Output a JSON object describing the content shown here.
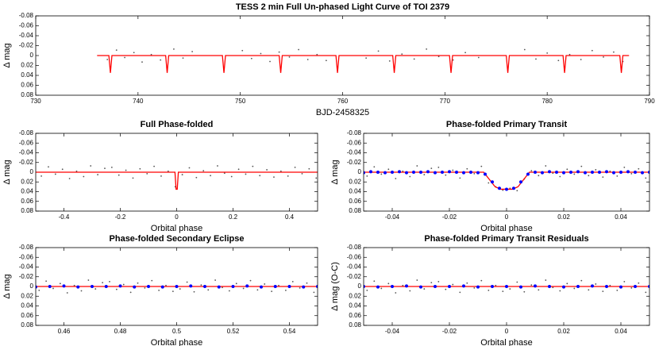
{
  "chart_data": [
    {
      "type": "scatter",
      "title": "TESS 2 min Full Un-phased Light Curve of TOI 2379",
      "xlabel": "BJD-2458325",
      "ylabel": "Δ mag",
      "xlim": [
        730,
        790
      ],
      "xticks": [
        730,
        740,
        750,
        760,
        770,
        780,
        790
      ],
      "ylim": [
        -0.08,
        0.08
      ],
      "y_inverted": true,
      "yticks": [
        -0.08,
        -0.06,
        -0.04,
        -0.02,
        0,
        0.02,
        0.04,
        0.06,
        0.08
      ],
      "series": [
        {
          "type": "scatter",
          "color": "#555555",
          "x": [
            737,
            737.9,
            738.7,
            739.6,
            740.4,
            741.3,
            742.2,
            743.5,
            744.4,
            745.3,
            750.2,
            751.1,
            752,
            752.9,
            753.8,
            754.8,
            755.7,
            756.6,
            757.5,
            758.4,
            762.3,
            763.5,
            764.6,
            765.8,
            767,
            768.2,
            769.4,
            770.8,
            772,
            773.3,
            777.8,
            778.9,
            780,
            781.1,
            782.2,
            783.3,
            784.4,
            785.5,
            786.5,
            787.4
          ],
          "values": [
            0.008,
            -0.011,
            0.004,
            -0.006,
            0.013,
            -0.002,
            0.009,
            -0.013,
            0.005,
            -0.008,
            -0.01,
            0.006,
            -0.004,
            0.012,
            -0.007,
            0.003,
            -0.012,
            0.008,
            -0.002,
            0.01,
            0.005,
            -0.009,
            0.011,
            -0.003,
            0.007,
            -0.013,
            0.002,
            0.009,
            -0.006,
            0.004,
            -0.012,
            0.007,
            -0.005,
            0.01,
            -0.002,
            0.008,
            -0.01,
            0.003,
            -0.007,
            0.012
          ]
        },
        {
          "type": "line",
          "color": "#ff0000",
          "x": [
            736,
            737.15,
            737.3,
            737.45,
            742.7,
            742.85,
            743,
            748.25,
            748.4,
            748.55,
            753.8,
            753.95,
            754.1,
            759.35,
            759.5,
            759.65,
            764.9,
            765.05,
            765.2,
            770.45,
            770.6,
            770.75,
            776,
            776.15,
            776.3,
            781.55,
            781.7,
            781.85,
            787.1,
            787.25,
            787.4,
            788
          ],
          "values": [
            0,
            0,
            0.035,
            0,
            0,
            0.035,
            0,
            0,
            0.035,
            0,
            0,
            0.035,
            0,
            0,
            0.035,
            0,
            0,
            0.035,
            0,
            0,
            0.035,
            0,
            0,
            0.035,
            0,
            0,
            0.035,
            0,
            0,
            0.035,
            0,
            0
          ]
        }
      ]
    },
    {
      "type": "scatter",
      "title": "Full Phase-folded",
      "xlabel": "Orbital phase",
      "ylabel": "Δ mag",
      "xlim": [
        -0.5,
        0.5
      ],
      "xticks": [
        -0.4,
        -0.2,
        0,
        0.2,
        0.4
      ],
      "ylim": [
        -0.08,
        0.08
      ],
      "y_inverted": true,
      "yticks": [
        -0.08,
        -0.06,
        -0.04,
        -0.02,
        0,
        0.02,
        0.04,
        0.06,
        0.08
      ],
      "series": [
        {
          "type": "scatter",
          "color": "#555555",
          "x": [
            -0.48,
            -0.455,
            -0.43,
            -0.405,
            -0.38,
            -0.355,
            -0.33,
            -0.305,
            -0.28,
            -0.255,
            -0.23,
            -0.205,
            -0.18,
            -0.155,
            -0.13,
            -0.105,
            -0.08,
            -0.055,
            -0.03,
            -0.005,
            0.02,
            0.045,
            0.07,
            0.095,
            0.12,
            0.145,
            0.17,
            0.195,
            0.22,
            0.245,
            0.27,
            0.295,
            0.32,
            0.345,
            0.37,
            0.395,
            0.42,
            0.445,
            0.47,
            0.495
          ],
          "values": [
            0.008,
            -0.011,
            0.004,
            -0.006,
            0.013,
            -0.002,
            0.009,
            -0.013,
            0.005,
            -0.008,
            -0.01,
            0.006,
            -0.004,
            0.012,
            -0.007,
            0.003,
            -0.012,
            0.008,
            -0.002,
            0.03,
            0.005,
            -0.009,
            0.011,
            -0.003,
            0.007,
            -0.013,
            0.002,
            0.009,
            -0.006,
            0.004,
            -0.012,
            0.007,
            -0.005,
            0.01,
            -0.002,
            0.008,
            -0.01,
            0.003,
            -0.007,
            0.012
          ]
        },
        {
          "type": "line",
          "color": "#ff0000",
          "x": [
            -0.5,
            -0.006,
            -0.002,
            0.002,
            0.006,
            0.5
          ],
          "values": [
            0,
            0,
            0.035,
            0.035,
            0,
            0
          ]
        }
      ]
    },
    {
      "type": "scatter",
      "title": "Phase-folded Primary Transit",
      "xlabel": "Orbital phase",
      "ylabel": "Δ mag",
      "xlim": [
        -0.05,
        0.05
      ],
      "xticks": [
        -0.04,
        -0.02,
        0,
        0.02,
        0.04
      ],
      "ylim": [
        -0.08,
        0.08
      ],
      "y_inverted": true,
      "yticks": [
        -0.08,
        -0.06,
        -0.04,
        -0.02,
        0,
        0.02,
        0.04,
        0.06,
        0.08
      ],
      "series": [
        {
          "type": "scatter",
          "color": "#555555",
          "x": [
            -0.0488,
            -0.0463,
            -0.0438,
            -0.0413,
            -0.0388,
            -0.0363,
            -0.0338,
            -0.0313,
            -0.0288,
            -0.0263,
            -0.0238,
            -0.0213,
            -0.0188,
            -0.0163,
            -0.0138,
            -0.0113,
            -0.0088,
            -0.0063,
            -0.0038,
            -0.0013,
            0.0012,
            0.0037,
            0.0062,
            0.0087,
            0.0112,
            0.0137,
            0.0162,
            0.0187,
            0.0212,
            0.0237,
            0.0262,
            0.0287,
            0.0312,
            0.0337,
            0.0362,
            0.0387,
            0.0412,
            0.0437,
            0.0462,
            0.0487
          ],
          "values": [
            0.008,
            -0.011,
            0.004,
            -0.006,
            0.013,
            -0.002,
            0.009,
            -0.013,
            0.005,
            -0.008,
            -0.01,
            0.006,
            -0.004,
            0.012,
            -0.007,
            0.003,
            -0.012,
            0.022,
            0.03,
            0.037,
            0.033,
            0.038,
            0.014,
            -0.003,
            0.007,
            -0.013,
            0.002,
            0.009,
            -0.006,
            0.004,
            -0.012,
            0.007,
            -0.005,
            0.01,
            -0.002,
            0.008,
            -0.01,
            0.003,
            -0.007,
            0.012
          ]
        },
        {
          "type": "line",
          "color": "#ff0000",
          "x": [
            -0.05,
            -0.008,
            -0.004,
            -0.002,
            0.002,
            0.004,
            0.008,
            0.05
          ],
          "values": [
            0,
            0,
            0.03,
            0.035,
            0.035,
            0.03,
            0,
            0
          ]
        },
        {
          "type": "scatter",
          "color": "#0000ff",
          "x": [
            -0.05,
            -0.0475,
            -0.045,
            -0.0425,
            -0.04,
            -0.0375,
            -0.035,
            -0.0325,
            -0.03,
            -0.0275,
            -0.025,
            -0.0225,
            -0.02,
            -0.0175,
            -0.015,
            -0.0125,
            -0.01,
            -0.0075,
            -0.005,
            -0.0025,
            0,
            0.0025,
            0.005,
            0.0075,
            0.01,
            0.0125,
            0.015,
            0.0175,
            0.02,
            0.0225,
            0.025,
            0.0275,
            0.03,
            0.0325,
            0.035,
            0.0375,
            0.04,
            0.0425,
            0.045,
            0.0475,
            0.05
          ],
          "values": [
            0.001,
            -0.001,
            0,
            0.001,
            0,
            -0.001,
            0.001,
            0,
            0,
            -0.001,
            0.001,
            0,
            -0.001,
            0,
            0.001,
            0,
            0.001,
            0.004,
            0.02,
            0.033,
            0.035,
            0.033,
            0.02,
            0.004,
            0,
            0.001,
            -0.001,
            0,
            0.001,
            0,
            -0.001,
            0.001,
            0,
            0,
            -0.001,
            0.001,
            0,
            -0.001,
            0,
            0.001,
            0
          ]
        }
      ]
    },
    {
      "type": "scatter",
      "title": "Phase-folded Secondary Eclipse",
      "xlabel": "Orbital phase",
      "ylabel": "Δ mag",
      "xlim": [
        0.45,
        0.55
      ],
      "xticks": [
        0.46,
        0.48,
        0.5,
        0.52,
        0.54
      ],
      "ylim": [
        -0.08,
        0.08
      ],
      "y_inverted": true,
      "yticks": [
        -0.08,
        -0.06,
        -0.04,
        -0.02,
        0,
        0.02,
        0.04,
        0.06,
        0.08
      ],
      "series": [
        {
          "type": "scatter",
          "color": "#555555",
          "x": [
            0.4512,
            0.4537,
            0.4562,
            0.4587,
            0.4612,
            0.4637,
            0.4662,
            0.4687,
            0.4712,
            0.4737,
            0.4762,
            0.4787,
            0.4812,
            0.4837,
            0.4862,
            0.4887,
            0.4912,
            0.4937,
            0.4962,
            0.4987,
            0.5012,
            0.5037,
            0.5062,
            0.5087,
            0.5112,
            0.5137,
            0.5162,
            0.5187,
            0.5212,
            0.5237,
            0.5262,
            0.5287,
            0.5312,
            0.5337,
            0.5362,
            0.5387,
            0.5412,
            0.5437,
            0.5462,
            0.5487
          ],
          "values": [
            0.008,
            -0.011,
            0.004,
            -0.006,
            0.013,
            -0.002,
            0.009,
            -0.013,
            0.005,
            -0.008,
            -0.01,
            0.006,
            -0.004,
            0.012,
            -0.007,
            0.003,
            -0.012,
            0.008,
            -0.002,
            0.01,
            0.005,
            -0.009,
            0.011,
            -0.003,
            0.007,
            -0.013,
            0.002,
            0.009,
            -0.006,
            0.004,
            -0.012,
            0.007,
            -0.005,
            0.01,
            -0.002,
            0.008,
            -0.01,
            0.003,
            -0.007,
            0.012
          ]
        },
        {
          "type": "line",
          "color": "#ff0000",
          "x": [
            0.45,
            0.55
          ],
          "values": [
            0,
            0
          ]
        },
        {
          "type": "scatter",
          "color": "#0000ff",
          "x": [
            0.45,
            0.455,
            0.46,
            0.465,
            0.47,
            0.475,
            0.48,
            0.485,
            0.49,
            0.495,
            0.5,
            0.505,
            0.51,
            0.515,
            0.52,
            0.525,
            0.53,
            0.535,
            0.54,
            0.545,
            0.55
          ],
          "values": [
            0.001,
            0,
            -0.001,
            0.001,
            0,
            0,
            -0.001,
            0.001,
            0,
            0.001,
            0,
            -0.001,
            0,
            0.001,
            0,
            -0.001,
            0.001,
            0,
            0,
            0.001,
            0
          ]
        }
      ]
    },
    {
      "type": "scatter",
      "title": "Phase-folded Primary Transit Residuals",
      "xlabel": "Orbital phase",
      "ylabel": "Δ mag (O-C)",
      "xlim": [
        -0.05,
        0.05
      ],
      "xticks": [
        -0.04,
        -0.02,
        0,
        0.02,
        0.04
      ],
      "ylim": [
        -0.08,
        0.08
      ],
      "y_inverted": true,
      "yticks": [
        -0.08,
        -0.06,
        -0.04,
        -0.02,
        0,
        0.02,
        0.04,
        0.06,
        0.08
      ],
      "series": [
        {
          "type": "scatter",
          "color": "#555555",
          "x": [
            -0.0488,
            -0.0463,
            -0.0438,
            -0.0413,
            -0.0388,
            -0.0363,
            -0.0338,
            -0.0313,
            -0.0288,
            -0.0263,
            -0.0238,
            -0.0213,
            -0.0188,
            -0.0163,
            -0.0138,
            -0.0113,
            -0.0088,
            -0.0063,
            -0.0038,
            -0.0013,
            0.0012,
            0.0037,
            0.0062,
            0.0087,
            0.0112,
            0.0137,
            0.0162,
            0.0187,
            0.0212,
            0.0237,
            0.0262,
            0.0287,
            0.0312,
            0.0337,
            0.0362,
            0.0387,
            0.0412,
            0.0437,
            0.0462,
            0.0487
          ],
          "values": [
            0.008,
            -0.011,
            0.004,
            -0.006,
            0.013,
            -0.002,
            0.009,
            -0.013,
            0.005,
            -0.008,
            -0.01,
            0.006,
            -0.004,
            0.012,
            -0.007,
            0.003,
            -0.012,
            0.008,
            -0.002,
            0.01,
            0.005,
            -0.009,
            0.011,
            -0.003,
            0.007,
            -0.013,
            0.002,
            0.009,
            -0.006,
            0.004,
            -0.012,
            0.007,
            -0.005,
            0.01,
            -0.002,
            0.008,
            -0.01,
            0.003,
            -0.007,
            0.012
          ]
        },
        {
          "type": "line",
          "color": "#ff0000",
          "x": [
            -0.05,
            0.05
          ],
          "values": [
            0,
            0
          ]
        },
        {
          "type": "scatter",
          "color": "#0000ff",
          "x": [
            -0.05,
            -0.045,
            -0.04,
            -0.035,
            -0.03,
            -0.025,
            -0.02,
            -0.015,
            -0.01,
            -0.005,
            0,
            0.005,
            0.01,
            0.015,
            0.02,
            0.025,
            0.03,
            0.035,
            0.04,
            0.045,
            0.05
          ],
          "values": [
            0,
            0.001,
            0,
            -0.001,
            0.001,
            0,
            0,
            -0.001,
            0.001,
            0,
            0,
            0.001,
            -0.001,
            0,
            0.001,
            0,
            -0.001,
            0,
            0.001,
            0,
            0
          ]
        }
      ]
    }
  ]
}
